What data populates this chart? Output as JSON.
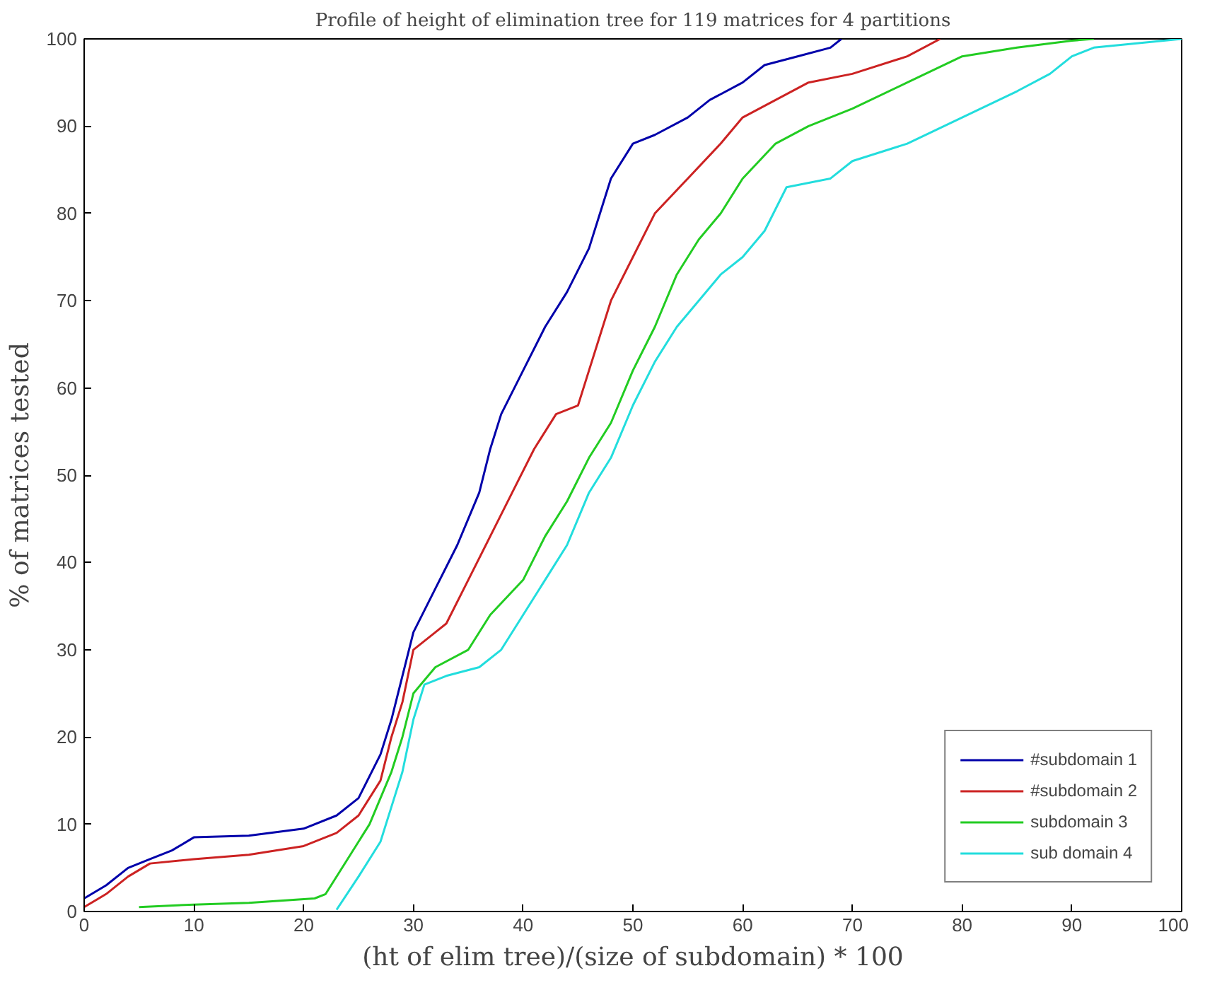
{
  "chart_data": {
    "type": "line",
    "title": "Profile of height of elimination tree for 119 matrices for 4 partitions",
    "xlabel": "(ht of elim tree)/(size of subdomain) * 100",
    "ylabel": "% of matrices tested",
    "xlim": [
      0,
      100
    ],
    "ylim": [
      0,
      100
    ],
    "xticks": [
      0,
      10,
      20,
      30,
      40,
      50,
      60,
      70,
      80,
      90,
      100
    ],
    "yticks": [
      0,
      10,
      20,
      30,
      40,
      50,
      60,
      70,
      80,
      90,
      100
    ],
    "grid": false,
    "legend": "bottom right",
    "line_style": "solid",
    "series": [
      {
        "name": "#subdomain 1",
        "color": "#0000aa",
        "x": [
          0,
          2,
          4,
          6,
          8,
          10,
          15,
          20,
          23,
          25,
          27,
          28,
          29,
          30,
          32,
          34,
          36,
          37,
          38,
          40,
          42,
          44,
          46,
          47,
          48,
          50,
          52,
          55,
          57,
          60,
          62,
          65,
          68,
          69
        ],
        "values": [
          1.5,
          3,
          5,
          6,
          7,
          8.5,
          8.7,
          9.5,
          11,
          13,
          18,
          22,
          27,
          32,
          37,
          42,
          48,
          53,
          57,
          62,
          67,
          71,
          76,
          80,
          84,
          88,
          89,
          91,
          93,
          95,
          97,
          98,
          99,
          100
        ]
      },
      {
        "name": "#subdomain 2",
        "color": "#cc2222",
        "x": [
          0,
          2,
          4,
          6,
          10,
          15,
          20,
          23,
          25,
          27,
          28,
          29,
          30,
          32,
          33,
          35,
          37,
          39,
          41,
          43,
          45,
          46,
          48,
          50,
          52,
          55,
          58,
          60,
          63,
          66,
          70,
          75,
          78
        ],
        "values": [
          0.5,
          2,
          4,
          5.5,
          6,
          6.5,
          7.5,
          9,
          11,
          15,
          20,
          24,
          30,
          32,
          33,
          38,
          43,
          48,
          53,
          57,
          58,
          62,
          70,
          75,
          80,
          84,
          88,
          91,
          93,
          95,
          96,
          98,
          100
        ]
      },
      {
        "name": "subdomain 3",
        "color": "#22cc22",
        "x": [
          5,
          10,
          15,
          21,
          22,
          24,
          26,
          28,
          29,
          30,
          32,
          35,
          37,
          40,
          42,
          44,
          46,
          48,
          50,
          52,
          54,
          56,
          58,
          60,
          63,
          66,
          70,
          75,
          80,
          85,
          90,
          92
        ],
        "values": [
          0.5,
          0.8,
          1,
          1.5,
          2,
          6,
          10,
          16,
          20,
          25,
          28,
          30,
          34,
          38,
          43,
          47,
          52,
          56,
          62,
          67,
          73,
          77,
          80,
          84,
          88,
          90,
          92,
          95,
          98,
          99,
          99.8,
          100
        ]
      },
      {
        "name": "sub domain 4",
        "color": "#22dddd",
        "x": [
          23,
          25,
          27,
          28,
          29,
          30,
          31,
          33,
          36,
          38,
          40,
          42,
          44,
          46,
          48,
          50,
          52,
          54,
          56,
          58,
          60,
          62,
          64,
          68,
          70,
          75,
          80,
          85,
          88,
          90,
          92,
          100
        ],
        "values": [
          0.2,
          4,
          8,
          12,
          16,
          22,
          26,
          27,
          28,
          30,
          34,
          38,
          42,
          48,
          52,
          58,
          63,
          67,
          70,
          73,
          75,
          78,
          83,
          84,
          86,
          88,
          91,
          94,
          96,
          98,
          99,
          100
        ]
      }
    ]
  }
}
